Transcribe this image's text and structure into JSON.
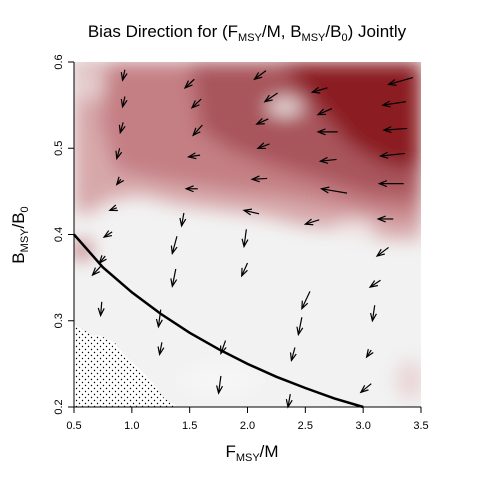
{
  "chart_data": {
    "type": "heatmap",
    "title": {
      "prefix": "Bias Direction for (F",
      "sub1": "MSY",
      "mid1": "/M, B",
      "sub2": "MSY",
      "mid2": "/B",
      "sub3": "0",
      "suffix": ") Jointly"
    },
    "xlabel": {
      "main1": "F",
      "sub1": "MSY",
      "main2": "/M"
    },
    "ylabel": {
      "main1": "B",
      "sub1": "MSY",
      "main2": "/B",
      "sub2": "0"
    },
    "xlim": [
      0.5,
      3.5
    ],
    "ylim": [
      0.2,
      0.6
    ],
    "x_ticks": [
      "0.5",
      "1.0",
      "1.5",
      "2.0",
      "2.5",
      "3.0",
      "3.5"
    ],
    "y_ticks": [
      "0.2",
      "0.3",
      "0.4",
      "0.5",
      "0.6"
    ],
    "colors": {
      "low": "#f2f2f2",
      "high": "#8b1a22",
      "curve": "#000000",
      "arrow": "#000000"
    },
    "curve": {
      "x": [
        0.5,
        0.75,
        1.0,
        1.25,
        1.5,
        1.75,
        2.0,
        2.25,
        2.5,
        2.75,
        3.0
      ],
      "y": [
        0.4,
        0.362,
        0.333,
        0.308,
        0.286,
        0.267,
        0.25,
        0.235,
        0.222,
        0.21,
        0.2
      ]
    },
    "hatched_region": {
      "x": [
        0.5,
        0.5,
        0.58,
        0.65,
        0.72,
        0.85,
        0.95,
        1.1,
        1.2,
        1.28,
        1.4
      ],
      "y": [
        0.2,
        0.295,
        0.29,
        0.283,
        0.283,
        0.275,
        0.258,
        0.24,
        0.225,
        0.21,
        0.2
      ]
    },
    "arrows": [
      {
        "x": 0.92,
        "y": 0.579,
        "dx": 0.02,
        "dy": 0.012
      },
      {
        "x": 0.92,
        "y": 0.548,
        "dx": 0.02,
        "dy": 0.012
      },
      {
        "x": 0.9,
        "y": 0.518,
        "dx": 0.025,
        "dy": 0.012
      },
      {
        "x": 0.87,
        "y": 0.488,
        "dx": 0.025,
        "dy": 0.012
      },
      {
        "x": 0.87,
        "y": 0.458,
        "dx": 0.035,
        "dy": 0.006
      },
      {
        "x": 0.81,
        "y": 0.428,
        "dx": 0.06,
        "dy": 0.003
      },
      {
        "x": 0.76,
        "y": 0.397,
        "dx": 0.07,
        "dy": 0.006
      },
      {
        "x": 0.72,
        "y": 0.367,
        "dx": 0.05,
        "dy": 0.008
      },
      {
        "x": 0.66,
        "y": 0.353,
        "dx": 0.07,
        "dy": 0.01
      },
      {
        "x": 0.73,
        "y": 0.306,
        "dx": 0.01,
        "dy": 0.016
      },
      {
        "x": 1.46,
        "y": 0.57,
        "dx": 0.08,
        "dy": 0.01
      },
      {
        "x": 1.52,
        "y": 0.547,
        "dx": 0.08,
        "dy": 0.01
      },
      {
        "x": 1.53,
        "y": 0.515,
        "dx": 0.08,
        "dy": 0.012
      },
      {
        "x": 1.49,
        "y": 0.49,
        "dx": 0.1,
        "dy": 0.002
      },
      {
        "x": 1.47,
        "y": 0.453,
        "dx": 0.1,
        "dy": 0.0
      },
      {
        "x": 1.43,
        "y": 0.41,
        "dx": 0.02,
        "dy": 0.015
      },
      {
        "x": 1.35,
        "y": 0.378,
        "dx": 0.04,
        "dy": 0.02
      },
      {
        "x": 1.35,
        "y": 0.34,
        "dx": 0.03,
        "dy": 0.02
      },
      {
        "x": 1.23,
        "y": 0.293,
        "dx": 0.02,
        "dy": 0.02
      },
      {
        "x": 1.24,
        "y": 0.261,
        "dx": 0.02,
        "dy": 0.014
      },
      {
        "x": 2.06,
        "y": 0.58,
        "dx": 0.1,
        "dy": 0.01
      },
      {
        "x": 2.15,
        "y": 0.554,
        "dx": 0.11,
        "dy": 0.01
      },
      {
        "x": 2.08,
        "y": 0.528,
        "dx": 0.1,
        "dy": 0.006
      },
      {
        "x": 2.09,
        "y": 0.5,
        "dx": 0.1,
        "dy": 0.005
      },
      {
        "x": 2.04,
        "y": 0.464,
        "dx": 0.13,
        "dy": 0.001
      },
      {
        "x": 1.97,
        "y": 0.428,
        "dx": 0.13,
        "dy": -0.004
      },
      {
        "x": 1.97,
        "y": 0.386,
        "dx": 0.02,
        "dy": 0.02
      },
      {
        "x": 1.95,
        "y": 0.352,
        "dx": 0.05,
        "dy": 0.015
      },
      {
        "x": 1.77,
        "y": 0.262,
        "dx": 0.04,
        "dy": 0.015
      },
      {
        "x": 1.75,
        "y": 0.216,
        "dx": 0.02,
        "dy": 0.02
      },
      {
        "x": 2.56,
        "y": 0.565,
        "dx": 0.13,
        "dy": 0.005
      },
      {
        "x": 2.61,
        "y": 0.539,
        "dx": 0.12,
        "dy": 0.007
      },
      {
        "x": 2.61,
        "y": 0.519,
        "dx": 0.17,
        "dy": 0.0
      },
      {
        "x": 2.63,
        "y": 0.485,
        "dx": 0.14,
        "dy": 0.002
      },
      {
        "x": 2.64,
        "y": 0.453,
        "dx": 0.22,
        "dy": -0.005
      },
      {
        "x": 2.5,
        "y": 0.412,
        "dx": 0.12,
        "dy": 0.005
      },
      {
        "x": 2.47,
        "y": 0.314,
        "dx": 0.07,
        "dy": 0.02
      },
      {
        "x": 2.44,
        "y": 0.284,
        "dx": 0.03,
        "dy": 0.02
      },
      {
        "x": 2.38,
        "y": 0.254,
        "dx": 0.03,
        "dy": 0.015
      },
      {
        "x": 2.35,
        "y": 0.2,
        "dx": 0.02,
        "dy": 0.015
      },
      {
        "x": 3.22,
        "y": 0.574,
        "dx": 0.21,
        "dy": 0.008
      },
      {
        "x": 3.17,
        "y": 0.55,
        "dx": 0.2,
        "dy": 0.004
      },
      {
        "x": 3.18,
        "y": 0.521,
        "dx": 0.2,
        "dy": 0.002
      },
      {
        "x": 3.15,
        "y": 0.491,
        "dx": 0.21,
        "dy": 0.003
      },
      {
        "x": 3.14,
        "y": 0.459,
        "dx": 0.21,
        "dy": 0.0
      },
      {
        "x": 3.13,
        "y": 0.418,
        "dx": 0.13,
        "dy": 0.0
      },
      {
        "x": 3.12,
        "y": 0.375,
        "dx": 0.1,
        "dy": 0.01
      },
      {
        "x": 3.06,
        "y": 0.339,
        "dx": 0.09,
        "dy": 0.008
      },
      {
        "x": 3.08,
        "y": 0.3,
        "dx": 0.02,
        "dy": 0.018
      },
      {
        "x": 3.03,
        "y": 0.258,
        "dx": 0.04,
        "dy": 0.008
      },
      {
        "x": 2.98,
        "y": 0.217,
        "dx": 0.09,
        "dy": 0.01
      }
    ]
  }
}
